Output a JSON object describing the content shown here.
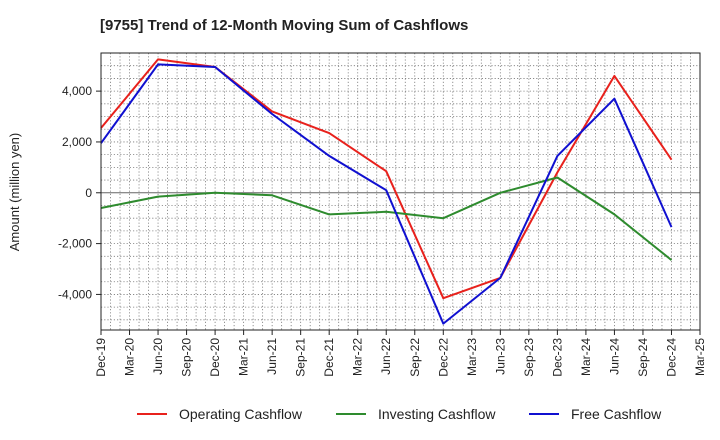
{
  "chart_data": {
    "type": "line",
    "title": "[9755]  Trend of 12-Month Moving Sum of Cashflows",
    "xlabel": "",
    "ylabel": "Amount (million yen)",
    "ylim": [
      -5400,
      5500
    ],
    "yticks": [
      -4000,
      -2000,
      0,
      2000,
      4000
    ],
    "ytick_labels": [
      "-4,000",
      "-2,000",
      "0",
      "2,000",
      "4,000"
    ],
    "categories": [
      "Dec-19",
      "Mar-20",
      "Jun-20",
      "Sep-20",
      "Dec-20",
      "Mar-21",
      "Jun-21",
      "Sep-21",
      "Dec-21",
      "Mar-22",
      "Jun-22",
      "Sep-22",
      "Dec-22",
      "Mar-23",
      "Jun-23",
      "Sep-23",
      "Dec-23",
      "Mar-24",
      "Jun-24",
      "Sep-24",
      "Dec-24",
      "Mar-25"
    ],
    "grid": true,
    "legend_position": "bottom",
    "series": [
      {
        "name": "Operating Cashflow",
        "color": "#e8211c",
        "values": [
          2550,
          null,
          5250,
          null,
          4950,
          null,
          3200,
          null,
          2350,
          null,
          850,
          null,
          -4150,
          null,
          -3350,
          null,
          800,
          null,
          4600,
          null,
          1300,
          null
        ]
      },
      {
        "name": "Investing Cashflow",
        "color": "#2e8b2e",
        "values": [
          -600,
          null,
          -150,
          null,
          0,
          null,
          -100,
          null,
          -850,
          null,
          -750,
          null,
          -1000,
          null,
          0,
          null,
          600,
          null,
          -850,
          null,
          -2650,
          null
        ]
      },
      {
        "name": "Free Cashflow",
        "color": "#1010d0",
        "values": [
          1950,
          null,
          5050,
          null,
          4950,
          null,
          3100,
          null,
          1450,
          null,
          100,
          null,
          -5150,
          null,
          -3350,
          null,
          1450,
          null,
          3700,
          null,
          -1350,
          null
        ]
      }
    ]
  }
}
